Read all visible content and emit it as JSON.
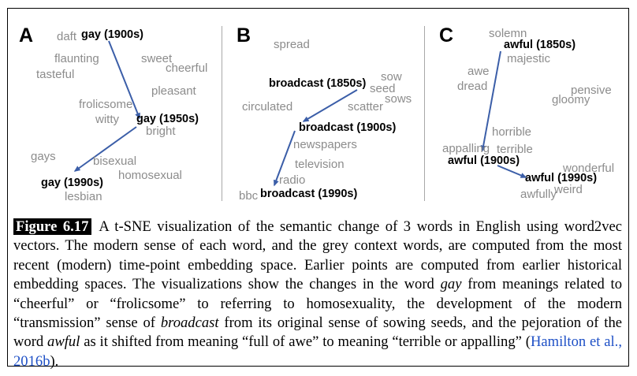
{
  "panels": [
    {
      "label": "A",
      "words": {
        "daft": "daft",
        "flaunting": "flaunting",
        "tasteful": "tasteful",
        "sweet": "sweet",
        "cheerful": "cheerful",
        "pleasant": "pleasant",
        "frolicsome": "frolicsome",
        "witty": "witty",
        "bright": "bright",
        "gays": "gays",
        "bisexual": "bisexual",
        "homosexual": "homosexual",
        "lesbian": "lesbian"
      },
      "targets": [
        "gay (1900s)",
        "gay (1950s)",
        "gay (1990s)"
      ]
    },
    {
      "label": "B",
      "words": {
        "spread": "spread",
        "sow": "sow",
        "seed": "seed",
        "sows": "sows",
        "circulated": "circulated",
        "scatter": "scatter",
        "newspapers": "newspapers",
        "television": "television",
        "radio": "radio",
        "bbc": "bbc"
      },
      "targets": [
        "broadcast (1850s)",
        "broadcast (1900s)",
        "broadcast (1990s)"
      ]
    },
    {
      "label": "C",
      "words": {
        "solemn": "solemn",
        "majestic": "majestic",
        "awe": "awe",
        "dread": "dread",
        "pensive": "pensive",
        "gloomy": "gloomy",
        "horrible": "horrible",
        "appalling": "appalling",
        "terrible": "terrible",
        "wonderful": "wonderful",
        "weird": "weird",
        "awfully": "awfully"
      },
      "targets": [
        "awful (1850s)",
        "awful (1900s)",
        "awful (1990s)"
      ]
    }
  ],
  "caption": {
    "label": "Figure 6.17",
    "seg1": "A t-SNE visualization of the semantic change of 3 words in English using word2vec vectors. The modern sense of each word, and the grey context words, are computed from the most recent (modern) time-point embedding space. Earlier points are computed from earlier historical embedding spaces. The visualizations show the changes in the word ",
    "em1": "gay",
    "seg2": " from meanings related to “cheerful” or “frolicsome” to referring to homosexuality, the development of the modern “transmission” sense of ",
    "em2": "broadcast",
    "seg3": " from its original sense of sowing seeds, and the pejoration of the word ",
    "em3": "awful",
    "seg4": " as it shifted from meaning “full of awe” to meaning “terrible or appalling” (",
    "cite": "Hamilton et al., 2016b",
    "seg5": ")."
  },
  "colors": {
    "arrow": "#3b5ea8",
    "context_word": "#8c8c8c",
    "target_word": "#000000",
    "citation": "#1e50c6"
  }
}
